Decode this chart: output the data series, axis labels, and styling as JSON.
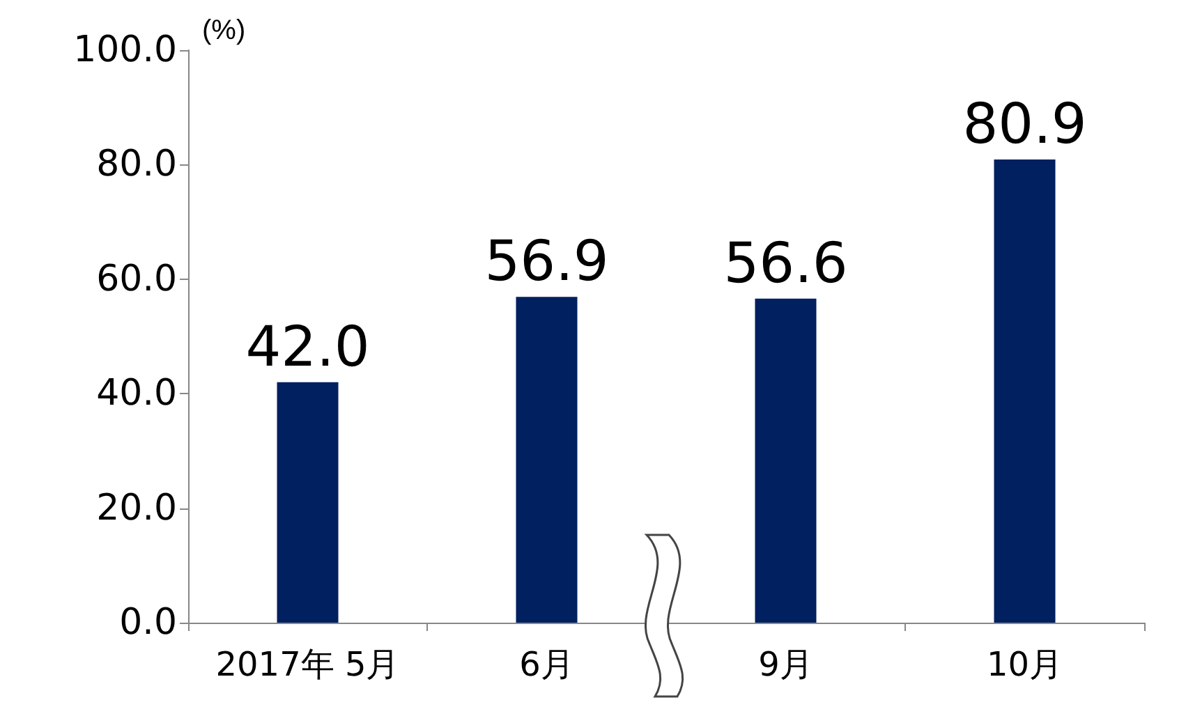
{
  "chart_data": {
    "type": "bar",
    "ylabel": "(%)",
    "categories": [
      "2017年 5月",
      "6月",
      "9月",
      "10月"
    ],
    "values": [
      42.0,
      56.9,
      56.6,
      80.9
    ],
    "color": "#002060",
    "ylim": [
      0,
      100
    ],
    "yticks": [
      {
        "value": 0,
        "label": "0.0"
      },
      {
        "value": 20,
        "label": "20.0"
      },
      {
        "value": 40,
        "label": "40.0"
      },
      {
        "value": 60,
        "label": "60.0"
      },
      {
        "value": 80,
        "label": "80.0"
      },
      {
        "value": 100,
        "label": "100.0"
      }
    ],
    "value_labels": [
      "42.0",
      "56.9",
      "56.6",
      "80.9"
    ]
  }
}
